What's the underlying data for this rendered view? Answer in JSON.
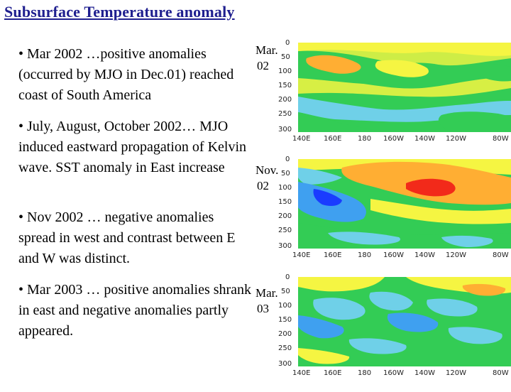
{
  "title": "Subsurface Temperature anomaly",
  "bullets": [
    "• Mar 2002 …positive anomalies (occurred by MJO in Dec.01) reached coast of South America",
    "• July, August, October 2002… MJO induced eastward propagation of Kelvin wave. SST anomaly in East increase",
    "• Nov 2002 … negative anomalies spread in west and contrast between E and W was distinct.",
    "• Mar 2003 … positive anomalies shrank in east and negative anomalies partly appeared."
  ],
  "panels": [
    {
      "month": "Mar.",
      "year": "02"
    },
    {
      "month": "Nov.",
      "year": "02"
    },
    {
      "month": "Mar.",
      "year": "03"
    }
  ],
  "axes": {
    "depth_ticks": [
      "0",
      "50",
      "100",
      "150",
      "200",
      "250",
      "300"
    ],
    "lon_ticks": [
      "140E",
      "160E",
      "180",
      "160W",
      "140W",
      "120W",
      "80W"
    ]
  },
  "colors": {
    "title": "#1f1f8f",
    "strong_negative": "#1a3cff",
    "negative": "#3fa0f0",
    "weak_negative": "#6fd0e8",
    "neutral": "#33cc55",
    "weak_positive": "#f5f542",
    "positive": "#ffae33",
    "strong_positive": "#f22a1a"
  }
}
